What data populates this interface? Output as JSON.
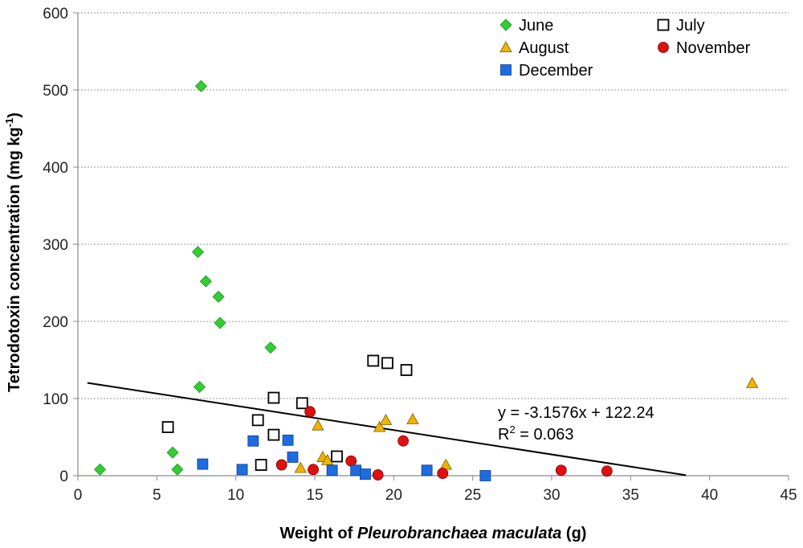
{
  "chart_data": {
    "type": "scatter",
    "xlabel_prefix": "Weight of ",
    "xlabel_italic": "Pleurobranchaea maculata",
    "xlabel_suffix": " (g)",
    "ylabel_main": "Tetrodotoxin concentration (mg kg",
    "ylabel_sup": "-1",
    "ylabel_close": ")",
    "xlim": [
      0,
      45
    ],
    "ylim": [
      0,
      600
    ],
    "x_ticks": [
      0,
      5,
      10,
      15,
      20,
      25,
      30,
      35,
      40,
      45
    ],
    "y_ticks": [
      0,
      100,
      200,
      300,
      400,
      500,
      600
    ],
    "grid": "horizontal dotted",
    "legend_position": "top-right",
    "series": [
      {
        "name": "June",
        "marker": "diamond",
        "color": "#33cc33",
        "points": [
          [
            1.4,
            8
          ],
          [
            6.0,
            30
          ],
          [
            6.3,
            8
          ],
          [
            7.6,
            290
          ],
          [
            7.7,
            115
          ],
          [
            7.8,
            505
          ],
          [
            8.1,
            252
          ],
          [
            8.9,
            232
          ],
          [
            9.0,
            198
          ],
          [
            12.2,
            166
          ]
        ]
      },
      {
        "name": "July",
        "marker": "open-square",
        "color": "#000000",
        "points": [
          [
            5.7,
            63
          ],
          [
            11.4,
            72
          ],
          [
            11.6,
            14
          ],
          [
            12.4,
            101
          ],
          [
            12.4,
            53
          ],
          [
            14.2,
            94
          ],
          [
            16.4,
            25
          ],
          [
            18.7,
            149
          ],
          [
            19.6,
            146
          ],
          [
            20.8,
            137
          ]
        ]
      },
      {
        "name": "August",
        "marker": "triangle",
        "color": "#f0b400",
        "points": [
          [
            14.1,
            10
          ],
          [
            15.2,
            65
          ],
          [
            15.5,
            24
          ],
          [
            15.8,
            20
          ],
          [
            19.1,
            63
          ],
          [
            19.5,
            72
          ],
          [
            21.2,
            73
          ],
          [
            23.3,
            14
          ],
          [
            42.7,
            120
          ]
        ]
      },
      {
        "name": "November",
        "marker": "circle",
        "color": "#e01010",
        "points": [
          [
            12.9,
            14
          ],
          [
            14.7,
            83
          ],
          [
            14.9,
            8
          ],
          [
            17.3,
            19
          ],
          [
            19.0,
            1
          ],
          [
            20.6,
            45
          ],
          [
            23.1,
            3
          ],
          [
            30.6,
            7
          ],
          [
            33.5,
            6
          ]
        ]
      },
      {
        "name": "December",
        "marker": "filled-square",
        "color": "#1e6de0",
        "points": [
          [
            7.9,
            15
          ],
          [
            10.4,
            8
          ],
          [
            11.1,
            45
          ],
          [
            13.3,
            46
          ],
          [
            13.6,
            24
          ],
          [
            16.1,
            7
          ],
          [
            17.6,
            7
          ],
          [
            18.2,
            2
          ],
          [
            22.1,
            7
          ],
          [
            25.8,
            0
          ]
        ]
      }
    ],
    "trendline": {
      "slope": -3.1576,
      "intercept": 122.24,
      "x_range": [
        0.6,
        38.5
      ],
      "color": "#000000"
    },
    "annotation": {
      "equation": "y = -3.1576x  + 122.24",
      "r2_prefix": "R",
      "r2_sup": "2",
      "r2_value": " = 0.063"
    }
  }
}
